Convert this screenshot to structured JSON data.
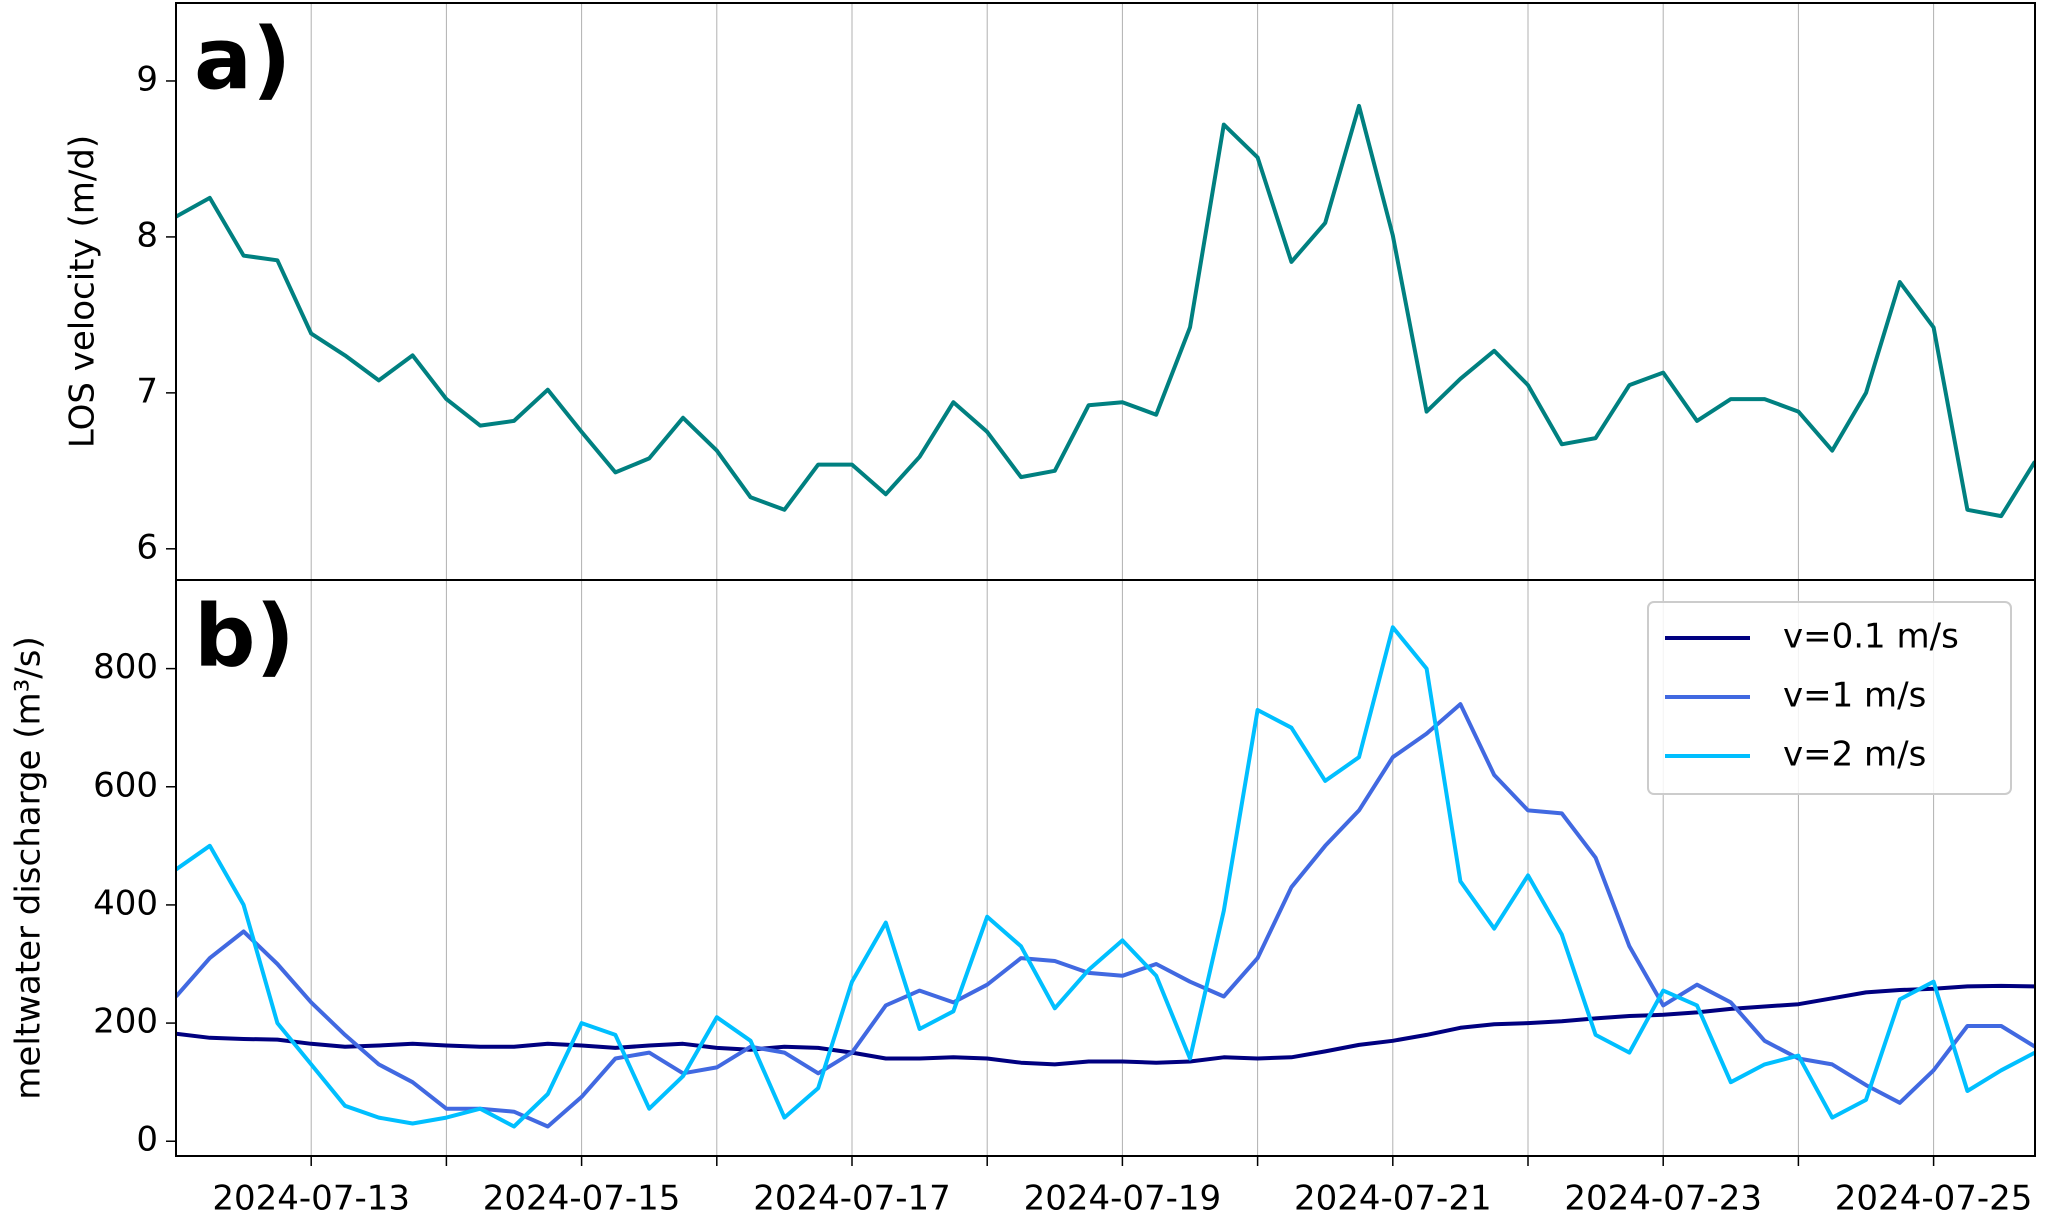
{
  "chart_data": [
    {
      "type": "line",
      "panel_label": "a)",
      "ylabel": "LOS velocity (m/d)",
      "color": "#008080",
      "x": [
        "2024-07-12 00:00",
        "2024-07-12 06:00",
        "2024-07-12 12:00",
        "2024-07-12 18:00",
        "2024-07-13 00:00",
        "2024-07-13 06:00",
        "2024-07-13 12:00",
        "2024-07-13 18:00",
        "2024-07-14 00:00",
        "2024-07-14 06:00",
        "2024-07-14 12:00",
        "2024-07-14 18:00",
        "2024-07-15 00:00",
        "2024-07-15 06:00",
        "2024-07-15 12:00",
        "2024-07-15 18:00",
        "2024-07-16 00:00",
        "2024-07-16 06:00",
        "2024-07-16 12:00",
        "2024-07-16 18:00",
        "2024-07-17 00:00",
        "2024-07-17 06:00",
        "2024-07-17 12:00",
        "2024-07-17 18:00",
        "2024-07-18 00:00",
        "2024-07-18 06:00",
        "2024-07-18 12:00",
        "2024-07-18 18:00",
        "2024-07-19 00:00",
        "2024-07-19 06:00",
        "2024-07-19 12:00",
        "2024-07-19 18:00",
        "2024-07-20 00:00",
        "2024-07-20 06:00",
        "2024-07-20 12:00",
        "2024-07-20 18:00",
        "2024-07-21 00:00",
        "2024-07-21 06:00",
        "2024-07-21 12:00",
        "2024-07-21 18:00",
        "2024-07-22 00:00",
        "2024-07-22 06:00",
        "2024-07-22 12:00",
        "2024-07-22 18:00",
        "2024-07-23 00:00",
        "2024-07-23 06:00",
        "2024-07-23 12:00",
        "2024-07-23 18:00",
        "2024-07-24 00:00",
        "2024-07-24 06:00",
        "2024-07-24 12:00",
        "2024-07-24 18:00",
        "2024-07-25 00:00",
        "2024-07-25 06:00",
        "2024-07-25 12:00",
        "2024-07-25 18:00"
      ],
      "values": [
        8.13,
        8.25,
        7.88,
        7.85,
        7.38,
        7.24,
        7.08,
        7.24,
        6.96,
        6.79,
        6.82,
        7.02,
        6.75,
        6.49,
        6.58,
        6.84,
        6.63,
        6.33,
        6.25,
        6.54,
        6.54,
        6.35,
        6.59,
        6.94,
        6.75,
        6.46,
        6.5,
        6.92,
        6.94,
        6.86,
        7.42,
        8.72,
        8.51,
        7.84,
        8.09,
        8.84,
        8.01,
        6.88,
        7.09,
        7.27,
        7.05,
        6.67,
        6.71,
        7.05,
        7.13,
        6.82,
        6.96,
        6.96,
        6.88,
        6.63,
        7.0,
        7.71,
        7.42,
        6.25,
        6.21,
        6.56
      ],
      "xlim": [
        "2024-07-12 00:00",
        "2024-07-25 18:00"
      ],
      "xticks": [
        {
          "value": "2024-07-13",
          "label": null
        },
        {
          "value": "2024-07-14",
          "label": null
        },
        {
          "value": "2024-07-15",
          "label": null
        },
        {
          "value": "2024-07-16",
          "label": null
        },
        {
          "value": "2024-07-17",
          "label": null
        },
        {
          "value": "2024-07-18",
          "label": null
        },
        {
          "value": "2024-07-19",
          "label": null
        },
        {
          "value": "2024-07-20",
          "label": null
        },
        {
          "value": "2024-07-21",
          "label": null
        },
        {
          "value": "2024-07-22",
          "label": null
        },
        {
          "value": "2024-07-23",
          "label": null
        },
        {
          "value": "2024-07-24",
          "label": null
        },
        {
          "value": "2024-07-25",
          "label": null
        }
      ],
      "ylim": [
        5.8,
        9.5
      ],
      "yticks": [
        6,
        7,
        8,
        9
      ],
      "xgrid": true
    },
    {
      "type": "line",
      "panel_label": "b)",
      "ylabel": "meltwater discharge (m³/s)",
      "x": [
        "2024-07-12 00:00",
        "2024-07-12 06:00",
        "2024-07-12 12:00",
        "2024-07-12 18:00",
        "2024-07-13 00:00",
        "2024-07-13 06:00",
        "2024-07-13 12:00",
        "2024-07-13 18:00",
        "2024-07-14 00:00",
        "2024-07-14 06:00",
        "2024-07-14 12:00",
        "2024-07-14 18:00",
        "2024-07-15 00:00",
        "2024-07-15 06:00",
        "2024-07-15 12:00",
        "2024-07-15 18:00",
        "2024-07-16 00:00",
        "2024-07-16 06:00",
        "2024-07-16 12:00",
        "2024-07-16 18:00",
        "2024-07-17 00:00",
        "2024-07-17 06:00",
        "2024-07-17 12:00",
        "2024-07-17 18:00",
        "2024-07-18 00:00",
        "2024-07-18 06:00",
        "2024-07-18 12:00",
        "2024-07-18 18:00",
        "2024-07-19 00:00",
        "2024-07-19 06:00",
        "2024-07-19 12:00",
        "2024-07-19 18:00",
        "2024-07-20 00:00",
        "2024-07-20 06:00",
        "2024-07-20 12:00",
        "2024-07-20 18:00",
        "2024-07-21 00:00",
        "2024-07-21 06:00",
        "2024-07-21 12:00",
        "2024-07-21 18:00",
        "2024-07-22 00:00",
        "2024-07-22 06:00",
        "2024-07-22 12:00",
        "2024-07-22 18:00",
        "2024-07-23 00:00",
        "2024-07-23 06:00",
        "2024-07-23 12:00",
        "2024-07-23 18:00",
        "2024-07-24 00:00",
        "2024-07-24 06:00",
        "2024-07-24 12:00",
        "2024-07-24 18:00",
        "2024-07-25 00:00",
        "2024-07-25 06:00",
        "2024-07-25 12:00",
        "2024-07-25 18:00"
      ],
      "series": [
        {
          "name": "v=0.1 m/s",
          "color": "#000080",
          "values": [
            182,
            175,
            173,
            172,
            165,
            160,
            162,
            165,
            162,
            160,
            160,
            165,
            162,
            158,
            162,
            165,
            158,
            155,
            160,
            158,
            150,
            140,
            140,
            142,
            140,
            133,
            130,
            135,
            135,
            133,
            135,
            142,
            140,
            142,
            152,
            163,
            170,
            180,
            192,
            198,
            200,
            203,
            208,
            212,
            214,
            218,
            224,
            228,
            232,
            242,
            252,
            256,
            258,
            262,
            263,
            262
          ]
        },
        {
          "name": "v=1 m/s",
          "color": "#4169e1",
          "values": [
            245,
            310,
            355,
            300,
            235,
            180,
            130,
            100,
            55,
            55,
            50,
            25,
            75,
            140,
            150,
            115,
            125,
            160,
            150,
            115,
            150,
            230,
            255,
            235,
            265,
            310,
            305,
            285,
            280,
            300,
            270,
            245,
            310,
            430,
            500,
            560,
            650,
            690,
            740,
            620,
            560,
            555,
            480,
            330,
            230,
            265,
            235,
            170,
            140,
            130,
            95,
            65,
            120,
            195,
            195,
            160
          ]
        },
        {
          "name": "v=2 m/s",
          "color": "#00bfff",
          "values": [
            460,
            500,
            400,
            200,
            130,
            60,
            40,
            30,
            40,
            55,
            25,
            80,
            200,
            180,
            55,
            110,
            210,
            170,
            40,
            90,
            270,
            370,
            190,
            220,
            380,
            330,
            225,
            290,
            340,
            280,
            140,
            390,
            730,
            700,
            610,
            650,
            870,
            800,
            440,
            360,
            450,
            350,
            180,
            150,
            255,
            230,
            100,
            130,
            145,
            40,
            70,
            240,
            270,
            85,
            120,
            150
          ]
        }
      ],
      "xlim": [
        "2024-07-12 00:00",
        "2024-07-25 18:00"
      ],
      "xticks": [
        "2024-07-13",
        {
          "value": "2024-07-14",
          "label": null
        },
        "2024-07-15",
        {
          "value": "2024-07-16",
          "label": null
        },
        "2024-07-17",
        {
          "value": "2024-07-18",
          "label": null
        },
        "2024-07-19",
        {
          "value": "2024-07-20",
          "label": null
        },
        "2024-07-21",
        {
          "value": "2024-07-22",
          "label": null
        },
        "2024-07-23",
        {
          "value": "2024-07-24",
          "label": null
        },
        "2024-07-25"
      ],
      "ylim": [
        -25,
        950
      ],
      "yticks": [
        0,
        200,
        400,
        600,
        800
      ],
      "xgrid": true,
      "legend": "upper right"
    }
  ]
}
